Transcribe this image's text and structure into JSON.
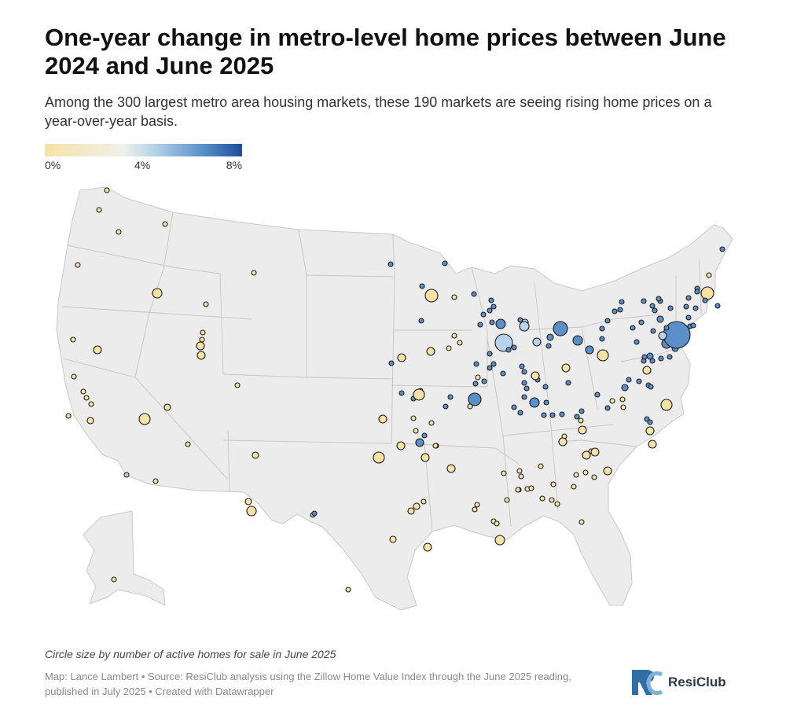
{
  "header": {
    "title": "One-year change in metro-level home prices between June 2024 and June 2025",
    "subtitle": "Among the 300 largest metro area housing markets, these 190 markets are seeing rising home prices on a year-over-year basis."
  },
  "legend": {
    "min_label": "0%",
    "mid_label": "4%",
    "max_label": "8%",
    "colors": [
      "#f7e2a6",
      "#eef0ea",
      "#b7d3e9",
      "#5b8fc8",
      "#1f4e9a"
    ]
  },
  "footer": {
    "note": "Circle size by number of active homes for sale in June 2025",
    "source": "Map: Lance Lambert • Source: ResiClub analysis using the Zillow Home Value Index through the June 2025 reading, published in July 2025 • Created with Datawrapper",
    "brand": "ResiClub"
  }
}
